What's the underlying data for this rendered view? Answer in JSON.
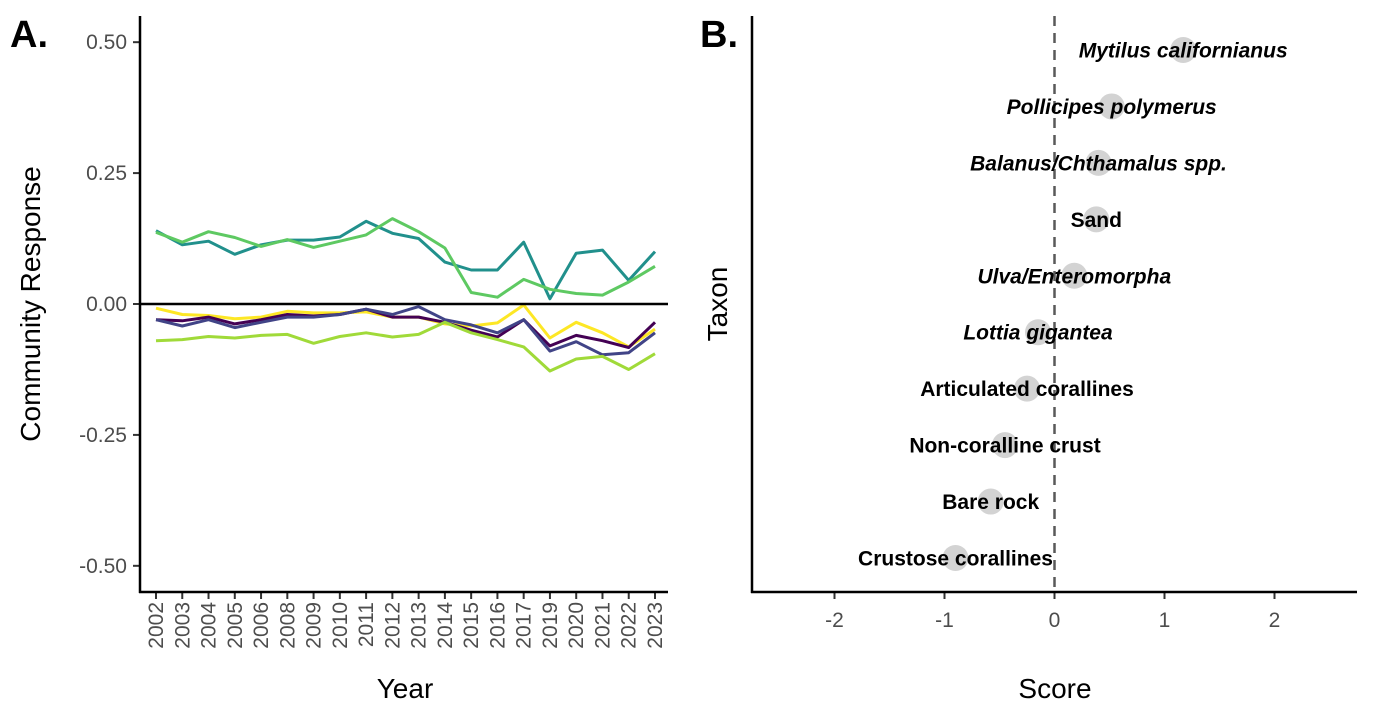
{
  "chart_data": [
    {
      "panel": "A.",
      "type": "line",
      "xlabel": "Year",
      "ylabel": "Community Response",
      "ylim": [
        -0.55,
        0.55
      ],
      "yticks": [
        "0.50",
        "0.25",
        "0.00",
        "-0.25",
        "-0.50"
      ],
      "ytick_values": [
        0.5,
        0.25,
        0.0,
        -0.25,
        -0.5
      ],
      "reference_line": 0.0,
      "grid": false,
      "x": [
        "2002",
        "2003",
        "2004",
        "2005",
        "2006",
        "2008",
        "2009",
        "2010",
        "2011",
        "2012",
        "2013",
        "2014",
        "2015",
        "2016",
        "2017",
        "2019",
        "2020",
        "2021",
        "2022",
        "2023"
      ],
      "series": [
        {
          "color": "#21908c",
          "values": [
            0.14,
            0.113,
            0.12,
            0.095,
            0.113,
            0.122,
            0.122,
            0.128,
            0.158,
            0.135,
            0.125,
            0.08,
            0.065,
            0.065,
            0.118,
            0.01,
            0.097,
            0.103,
            0.045,
            0.1
          ]
        },
        {
          "color": "#5ec962",
          "values": [
            0.137,
            0.118,
            0.138,
            0.127,
            0.11,
            0.123,
            0.108,
            0.12,
            0.132,
            0.163,
            0.138,
            0.107,
            0.022,
            0.013,
            0.047,
            0.028,
            0.02,
            0.017,
            0.042,
            0.072
          ]
        },
        {
          "color": "#fde725",
          "values": [
            -0.008,
            -0.02,
            -0.022,
            -0.028,
            -0.025,
            -0.014,
            -0.017,
            -0.017,
            -0.015,
            -0.025,
            -0.025,
            -0.038,
            -0.042,
            -0.036,
            -0.002,
            -0.065,
            -0.035,
            -0.055,
            -0.082,
            -0.048
          ]
        },
        {
          "color": "#440154",
          "values": [
            -0.03,
            -0.032,
            -0.025,
            -0.038,
            -0.03,
            -0.02,
            -0.023,
            -0.02,
            -0.01,
            -0.025,
            -0.025,
            -0.035,
            -0.05,
            -0.063,
            -0.03,
            -0.08,
            -0.06,
            -0.07,
            -0.083,
            -0.035
          ]
        },
        {
          "color": "#414487",
          "values": [
            -0.03,
            -0.042,
            -0.03,
            -0.045,
            -0.035,
            -0.025,
            -0.025,
            -0.02,
            -0.01,
            -0.02,
            -0.005,
            -0.03,
            -0.04,
            -0.055,
            -0.03,
            -0.09,
            -0.072,
            -0.097,
            -0.093,
            -0.055
          ]
        },
        {
          "color": "#a0da39",
          "values": [
            -0.07,
            -0.068,
            -0.062,
            -0.065,
            -0.06,
            -0.058,
            -0.075,
            -0.062,
            -0.055,
            -0.063,
            -0.058,
            -0.035,
            -0.055,
            -0.068,
            -0.082,
            -0.128,
            -0.105,
            -0.1,
            -0.125,
            -0.095
          ]
        }
      ]
    },
    {
      "panel": "B.",
      "type": "scatter",
      "xlabel": "Score",
      "ylabel": "Taxon",
      "xlim": [
        -2.75,
        2.75
      ],
      "xticks": [
        "-2",
        "-1",
        "0",
        "1",
        "2"
      ],
      "xtick_values": [
        -2,
        -1,
        0,
        1,
        2
      ],
      "reference_line": 0,
      "grid": false,
      "point_color": "#d3d3d3",
      "points": [
        {
          "label": "Mytilus californianus",
          "italic": true,
          "score": 1.17
        },
        {
          "label": "Pollicipes polymerus",
          "italic": true,
          "score": 0.52
        },
        {
          "label": "Balanus/Chthamalus spp.",
          "italic": true,
          "score": 0.4
        },
        {
          "label": "Sand",
          "italic": false,
          "score": 0.38
        },
        {
          "label": "Ulva/Enteromorpha",
          "italic": true,
          "score": 0.18
        },
        {
          "label": "Lottia gigantea",
          "italic": true,
          "score": -0.15
        },
        {
          "label": "Articulated corallines",
          "italic": false,
          "score": -0.25
        },
        {
          "label": "Non-coralline crust",
          "italic": false,
          "score": -0.45
        },
        {
          "label": "Bare rock",
          "italic": false,
          "score": -0.58
        },
        {
          "label": "Crustose corallines",
          "italic": false,
          "score": -0.9
        }
      ]
    }
  ]
}
